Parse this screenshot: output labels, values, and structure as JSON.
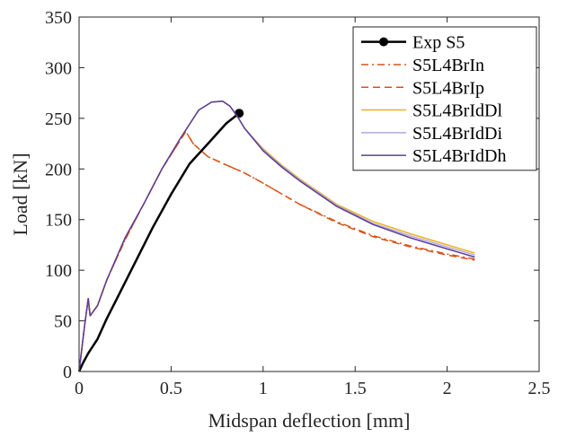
{
  "chart_data": {
    "type": "line",
    "xlabel": "Midspan deflection [mm]",
    "ylabel": "Load [kN]",
    "xlim": [
      0,
      2.5
    ],
    "ylim": [
      0,
      350
    ],
    "xticks": [
      "0",
      "0.5",
      "1",
      "1.5",
      "2",
      "2.5"
    ],
    "yticks": [
      "0",
      "50",
      "100",
      "150",
      "200",
      "250",
      "300",
      "350"
    ],
    "grid": false,
    "legend_position": "top-right",
    "series": [
      {
        "name": "Exp S5",
        "color": "#000000",
        "style": "solid-marker-end",
        "points": [
          [
            0,
            0
          ],
          [
            0.02,
            8
          ],
          [
            0.05,
            18
          ],
          [
            0.1,
            32
          ],
          [
            0.15,
            52
          ],
          [
            0.2,
            70
          ],
          [
            0.25,
            88
          ],
          [
            0.3,
            106
          ],
          [
            0.4,
            142
          ],
          [
            0.5,
            175
          ],
          [
            0.6,
            205
          ],
          [
            0.7,
            225
          ],
          [
            0.8,
            245
          ],
          [
            0.87,
            255
          ]
        ]
      },
      {
        "name": "S5L4BrIn",
        "color": "#D95319",
        "style": "dashdot",
        "points": [
          [
            0,
            0
          ],
          [
            0.03,
            45
          ],
          [
            0.05,
            72
          ],
          [
            0.06,
            55
          ],
          [
            0.1,
            65
          ],
          [
            0.15,
            90
          ],
          [
            0.25,
            130
          ],
          [
            0.35,
            165
          ],
          [
            0.45,
            200
          ],
          [
            0.58,
            237
          ],
          [
            0.62,
            225
          ],
          [
            0.7,
            212
          ],
          [
            0.8,
            204
          ],
          [
            0.9,
            196
          ],
          [
            1.0,
            186
          ],
          [
            1.2,
            165
          ],
          [
            1.4,
            148
          ],
          [
            1.6,
            134
          ],
          [
            1.8,
            124
          ],
          [
            2.0,
            116
          ],
          [
            2.15,
            111
          ]
        ]
      },
      {
        "name": "S5L4BrIp",
        "color": "#D95319",
        "style": "dashed",
        "points": [
          [
            0,
            0
          ],
          [
            0.03,
            45
          ],
          [
            0.05,
            72
          ],
          [
            0.06,
            55
          ],
          [
            0.1,
            65
          ],
          [
            0.15,
            90
          ],
          [
            0.25,
            130
          ],
          [
            0.35,
            165
          ],
          [
            0.45,
            200
          ],
          [
            0.58,
            237
          ],
          [
            0.62,
            225
          ],
          [
            0.7,
            212
          ],
          [
            0.8,
            204
          ],
          [
            0.9,
            196
          ],
          [
            1.0,
            186
          ],
          [
            1.2,
            165
          ],
          [
            1.4,
            147
          ],
          [
            1.6,
            133
          ],
          [
            1.8,
            123
          ],
          [
            2.0,
            115
          ],
          [
            2.15,
            110
          ]
        ]
      },
      {
        "name": "S5L4BrIdDl",
        "color": "#EDB120",
        "style": "solid",
        "points": [
          [
            0,
            0
          ],
          [
            0.03,
            45
          ],
          [
            0.05,
            72
          ],
          [
            0.06,
            55
          ],
          [
            0.1,
            65
          ],
          [
            0.15,
            90
          ],
          [
            0.25,
            132
          ],
          [
            0.35,
            165
          ],
          [
            0.45,
            200
          ],
          [
            0.55,
            230
          ],
          [
            0.65,
            258
          ],
          [
            0.72,
            266
          ],
          [
            0.78,
            267
          ],
          [
            0.82,
            262
          ],
          [
            0.86,
            252
          ],
          [
            0.9,
            240
          ],
          [
            1.0,
            220
          ],
          [
            1.1,
            204
          ],
          [
            1.2,
            190
          ],
          [
            1.4,
            165
          ],
          [
            1.6,
            148
          ],
          [
            1.8,
            136
          ],
          [
            2.0,
            125
          ],
          [
            2.15,
            117
          ]
        ]
      },
      {
        "name": "S5L4BrIdDi",
        "color": "#B2A8E0",
        "style": "solid",
        "points": [
          [
            0,
            0
          ],
          [
            0.03,
            45
          ],
          [
            0.05,
            72
          ],
          [
            0.06,
            55
          ],
          [
            0.1,
            65
          ],
          [
            0.15,
            90
          ],
          [
            0.25,
            132
          ],
          [
            0.35,
            165
          ],
          [
            0.45,
            200
          ],
          [
            0.55,
            230
          ],
          [
            0.65,
            258
          ],
          [
            0.72,
            266
          ],
          [
            0.78,
            267
          ],
          [
            0.82,
            262
          ],
          [
            0.86,
            252
          ],
          [
            0.9,
            240
          ],
          [
            1.0,
            219
          ],
          [
            1.1,
            203
          ],
          [
            1.2,
            189
          ],
          [
            1.4,
            164
          ],
          [
            1.6,
            146
          ],
          [
            1.8,
            134
          ],
          [
            2.0,
            123
          ],
          [
            2.15,
            115
          ]
        ]
      },
      {
        "name": "S5L4BrIdDh",
        "color": "#5B3F97",
        "style": "solid",
        "points": [
          [
            0,
            0
          ],
          [
            0.03,
            45
          ],
          [
            0.05,
            72
          ],
          [
            0.06,
            55
          ],
          [
            0.1,
            65
          ],
          [
            0.15,
            90
          ],
          [
            0.25,
            132
          ],
          [
            0.35,
            165
          ],
          [
            0.45,
            200
          ],
          [
            0.55,
            230
          ],
          [
            0.65,
            258
          ],
          [
            0.72,
            266
          ],
          [
            0.78,
            267
          ],
          [
            0.82,
            262
          ],
          [
            0.86,
            252
          ],
          [
            0.9,
            240
          ],
          [
            1.0,
            218
          ],
          [
            1.1,
            202
          ],
          [
            1.2,
            188
          ],
          [
            1.4,
            163
          ],
          [
            1.6,
            145
          ],
          [
            1.8,
            132
          ],
          [
            2.0,
            121
          ],
          [
            2.15,
            113
          ]
        ]
      }
    ]
  }
}
